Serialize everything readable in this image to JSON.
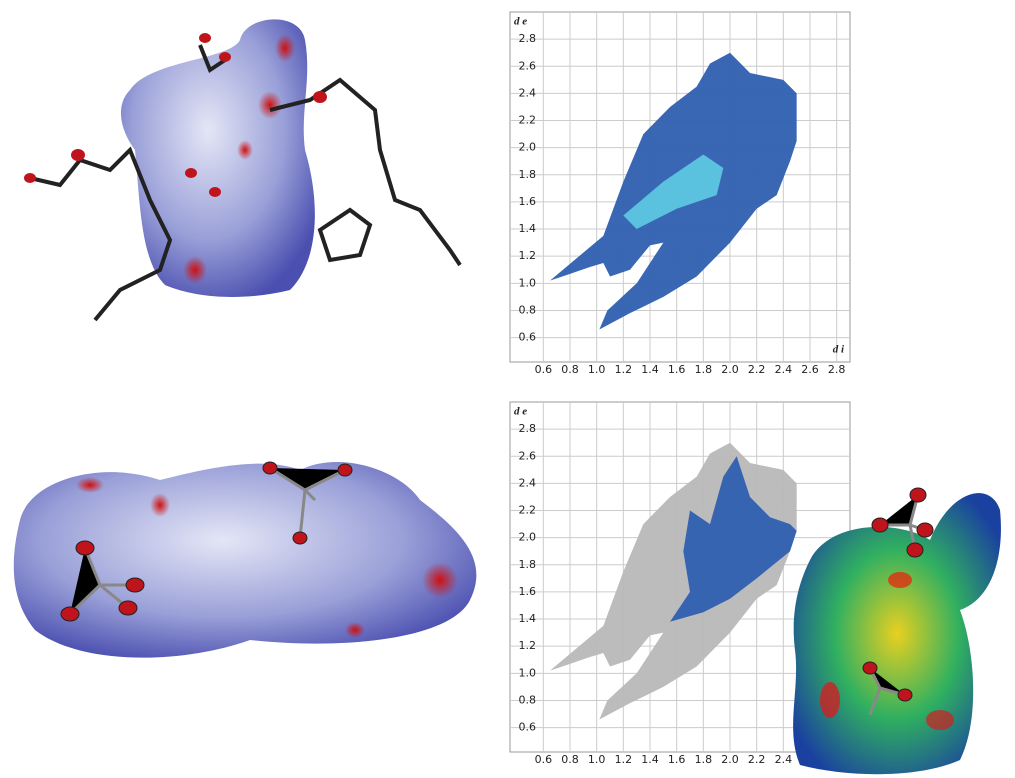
{
  "chart_data": [
    {
      "type": "scatter",
      "y_label": "d e",
      "x_label": "d i",
      "xlim": [
        0.35,
        2.9
      ],
      "ylim": [
        0.42,
        3.0
      ],
      "xticks": [
        0.6,
        0.8,
        {
          "value": 1,
          "label": "1.0"
        },
        1.2,
        1.4,
        1.6,
        1.8,
        {
          "value": 2,
          "label": "2.0"
        },
        2.2,
        2.4,
        2.6,
        2.8
      ],
      "yticks": [
        0.6,
        0.8,
        {
          "value": 1,
          "label": "1.0"
        },
        1.2,
        1.4,
        1.6,
        1.8,
        {
          "value": 2,
          "label": "2.0"
        },
        2.2,
        2.4,
        2.6,
        2.8
      ],
      "grid": true,
      "series": [
        {
          "color": "#2f5fb0",
          "x": [
            0.65,
            1.05,
            1.2,
            1.35,
            1.55,
            1.75,
            1.85,
            2.0,
            2.05,
            2.15,
            2.4,
            2.5,
            2.5,
            2.45,
            2.35,
            2.2,
            2.0,
            1.75,
            1.5,
            1.25,
            1.02,
            1.08,
            1.3,
            1.5,
            1.4,
            1.25,
            1.1,
            1.05,
            0.95,
            0.8
          ],
          "y": [
            1.02,
            1.35,
            1.75,
            2.1,
            2.3,
            2.45,
            2.62,
            2.7,
            2.65,
            2.55,
            2.5,
            2.4,
            2.05,
            1.9,
            1.65,
            1.55,
            1.3,
            1.05,
            0.9,
            0.78,
            0.66,
            0.8,
            1.0,
            1.3,
            1.28,
            1.1,
            1.05,
            1.15,
            1.12,
            1.07
          ]
        },
        {
          "color": "#5cc6e0",
          "x": [
            1.2,
            1.5,
            1.8,
            1.95,
            1.9,
            1.6,
            1.3
          ],
          "y": [
            1.5,
            1.75,
            1.95,
            1.85,
            1.65,
            1.55,
            1.4
          ]
        }
      ]
    },
    {
      "type": "scatter",
      "y_label": "d e",
      "xlim": [
        0.35,
        2.9
      ],
      "ylim": [
        0.42,
        3.0
      ],
      "xticks": [
        0.6,
        0.8,
        {
          "value": 1,
          "label": "1.0"
        },
        1.2,
        1.4,
        1.6,
        1.8,
        {
          "value": 2,
          "label": "2.0"
        },
        2.2,
        2.4
      ],
      "yticks": [
        0.6,
        0.8,
        {
          "value": 1,
          "label": "1.0"
        },
        1.2,
        1.4,
        1.6,
        1.8,
        {
          "value": 2,
          "label": "2.0"
        },
        2.2,
        2.4,
        2.6,
        2.8
      ],
      "grid": true,
      "series": [
        {
          "color": "#b8b8b8",
          "x": [
            0.65,
            1.05,
            1.2,
            1.35,
            1.55,
            1.75,
            1.85,
            2.0,
            2.05,
            2.15,
            2.4,
            2.5,
            2.5,
            2.45,
            2.35,
            2.2,
            2.0,
            1.75,
            1.5,
            1.25,
            1.02,
            1.08,
            1.3,
            1.5,
            1.4,
            1.25,
            1.1,
            1.05,
            0.95,
            0.8
          ],
          "y": [
            1.02,
            1.35,
            1.75,
            2.1,
            2.3,
            2.45,
            2.62,
            2.7,
            2.65,
            2.55,
            2.5,
            2.4,
            2.05,
            1.9,
            1.65,
            1.55,
            1.3,
            1.05,
            0.9,
            0.78,
            0.66,
            0.8,
            1.0,
            1.3,
            1.28,
            1.1,
            1.05,
            1.15,
            1.12,
            1.07
          ]
        },
        {
          "color": "#2f5fb0",
          "x": [
            1.55,
            1.7,
            1.65,
            1.7,
            1.85,
            1.95,
            2.05,
            2.15,
            2.3,
            2.45,
            2.5,
            2.45,
            2.2,
            2.0,
            1.8
          ],
          "y": [
            1.38,
            1.6,
            1.9,
            2.2,
            2.1,
            2.45,
            2.6,
            2.3,
            2.15,
            2.1,
            2.05,
            1.9,
            1.7,
            1.55,
            1.45
          ]
        }
      ]
    }
  ]
}
